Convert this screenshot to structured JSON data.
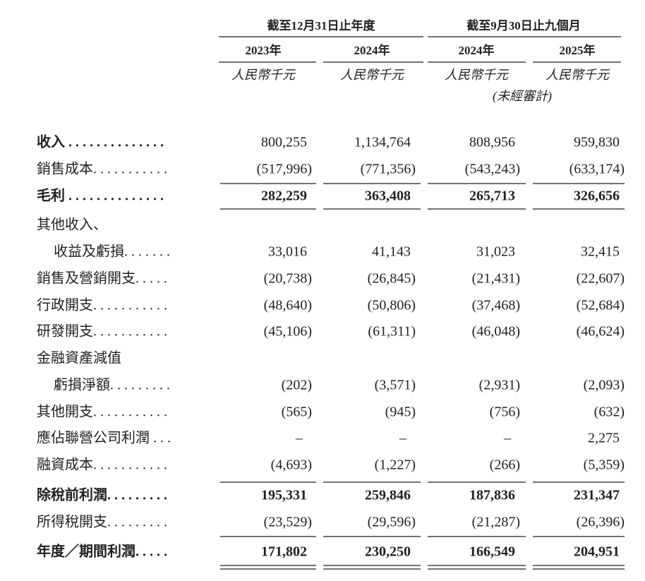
{
  "header": {
    "groups": [
      "截至12月31日止年度",
      "截至9月30日止九個月"
    ],
    "years": [
      "2023年",
      "2024年",
      "2024年",
      "2025年"
    ],
    "units": [
      "人民幣千元",
      "人民幣千元",
      "人民幣千元",
      "人民幣千元"
    ],
    "audit_note": "(未經審計)"
  },
  "table": {
    "rows": [
      {
        "label": "收入 . . . . . . . . . . . . . .",
        "values": [
          "800,255",
          "1,134,764",
          "808,956",
          "959,830"
        ]
      },
      {
        "label": "銷售成本. . . . . . . . . . .",
        "values": [
          "(517,996)",
          "(771,356)",
          "(543,243)",
          "(633,174)"
        ]
      },
      {
        "label": "毛利 . . . . . . . . . . . . . .",
        "values": [
          "282,259",
          "363,408",
          "265,713",
          "326,656"
        ]
      },
      {
        "label": "其他收入、"
      },
      {
        "label": "收益及虧損. . . . . . .",
        "values": [
          "33,016",
          "41,143",
          "31,023",
          "32,415"
        ]
      },
      {
        "label": "銷售及營銷開支. . . . .",
        "values": [
          "(20,738)",
          "(26,845)",
          "(21,431)",
          "(22,607)"
        ]
      },
      {
        "label": "行政開支. . . . . . . . . . .",
        "values": [
          "(48,640)",
          "(50,806)",
          "(37,468)",
          "(52,684)"
        ]
      },
      {
        "label": "研發開支. . . . . . . . . . .",
        "values": [
          "(45,106)",
          "(61,311)",
          "(46,048)",
          "(46,624)"
        ]
      },
      {
        "label": "金融資產減值"
      },
      {
        "label": "虧損淨額. . . . . . . . .",
        "values": [
          "(202)",
          "(3,571)",
          "(2,931)",
          "(2,093)"
        ]
      },
      {
        "label": "其他開支. . . . . . . . . . .",
        "values": [
          "(565)",
          "(945)",
          "(756)",
          "(632)"
        ]
      },
      {
        "label": "應佔聯營公司利潤 . . .",
        "values": [
          "–",
          "–",
          "–",
          "2,275"
        ]
      },
      {
        "label": "融資成本. . . . . . . . . . .",
        "values": [
          "(4,693)",
          "(1,227)",
          "(266)",
          "(5,359)"
        ]
      },
      {
        "label": "除稅前利潤. . . . . . . . .",
        "values": [
          "195,331",
          "259,846",
          "187,836",
          "231,347"
        ]
      },
      {
        "label": "所得稅開支. . . . . . . . .",
        "values": [
          "(23,529)",
          "(29,596)",
          "(21,287)",
          "(26,396)"
        ]
      },
      {
        "label": "年度／期間利潤. . . . .",
        "values": [
          "171,802",
          "230,250",
          "166,549",
          "204,951"
        ]
      }
    ]
  }
}
